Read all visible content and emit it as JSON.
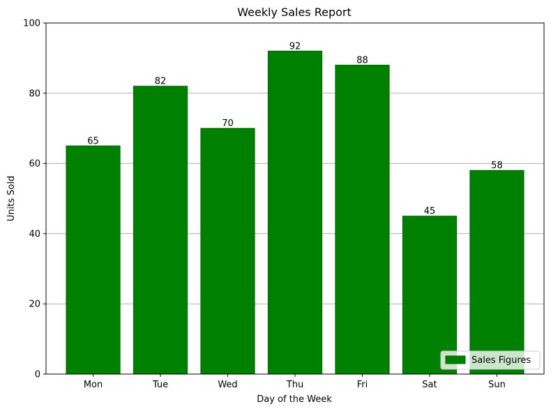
{
  "chart_data": {
    "type": "bar",
    "title": "Weekly Sales Report",
    "xlabel": "Day of the Week",
    "ylabel": "Units Sold",
    "categories": [
      "Mon",
      "Tue",
      "Wed",
      "Thu",
      "Fri",
      "Sat",
      "Sun"
    ],
    "series": [
      {
        "name": "Sales Figures",
        "values": [
          65,
          82,
          70,
          92,
          88,
          45,
          58
        ]
      }
    ],
    "ylim": [
      0,
      100
    ],
    "yticks": [
      "0",
      "20",
      "40",
      "60",
      "80",
      "100"
    ],
    "grid": "y",
    "legend": "lower-right",
    "bar_color": "#008000",
    "bar_edge_color": "#006400",
    "show_data_labels": true
  }
}
